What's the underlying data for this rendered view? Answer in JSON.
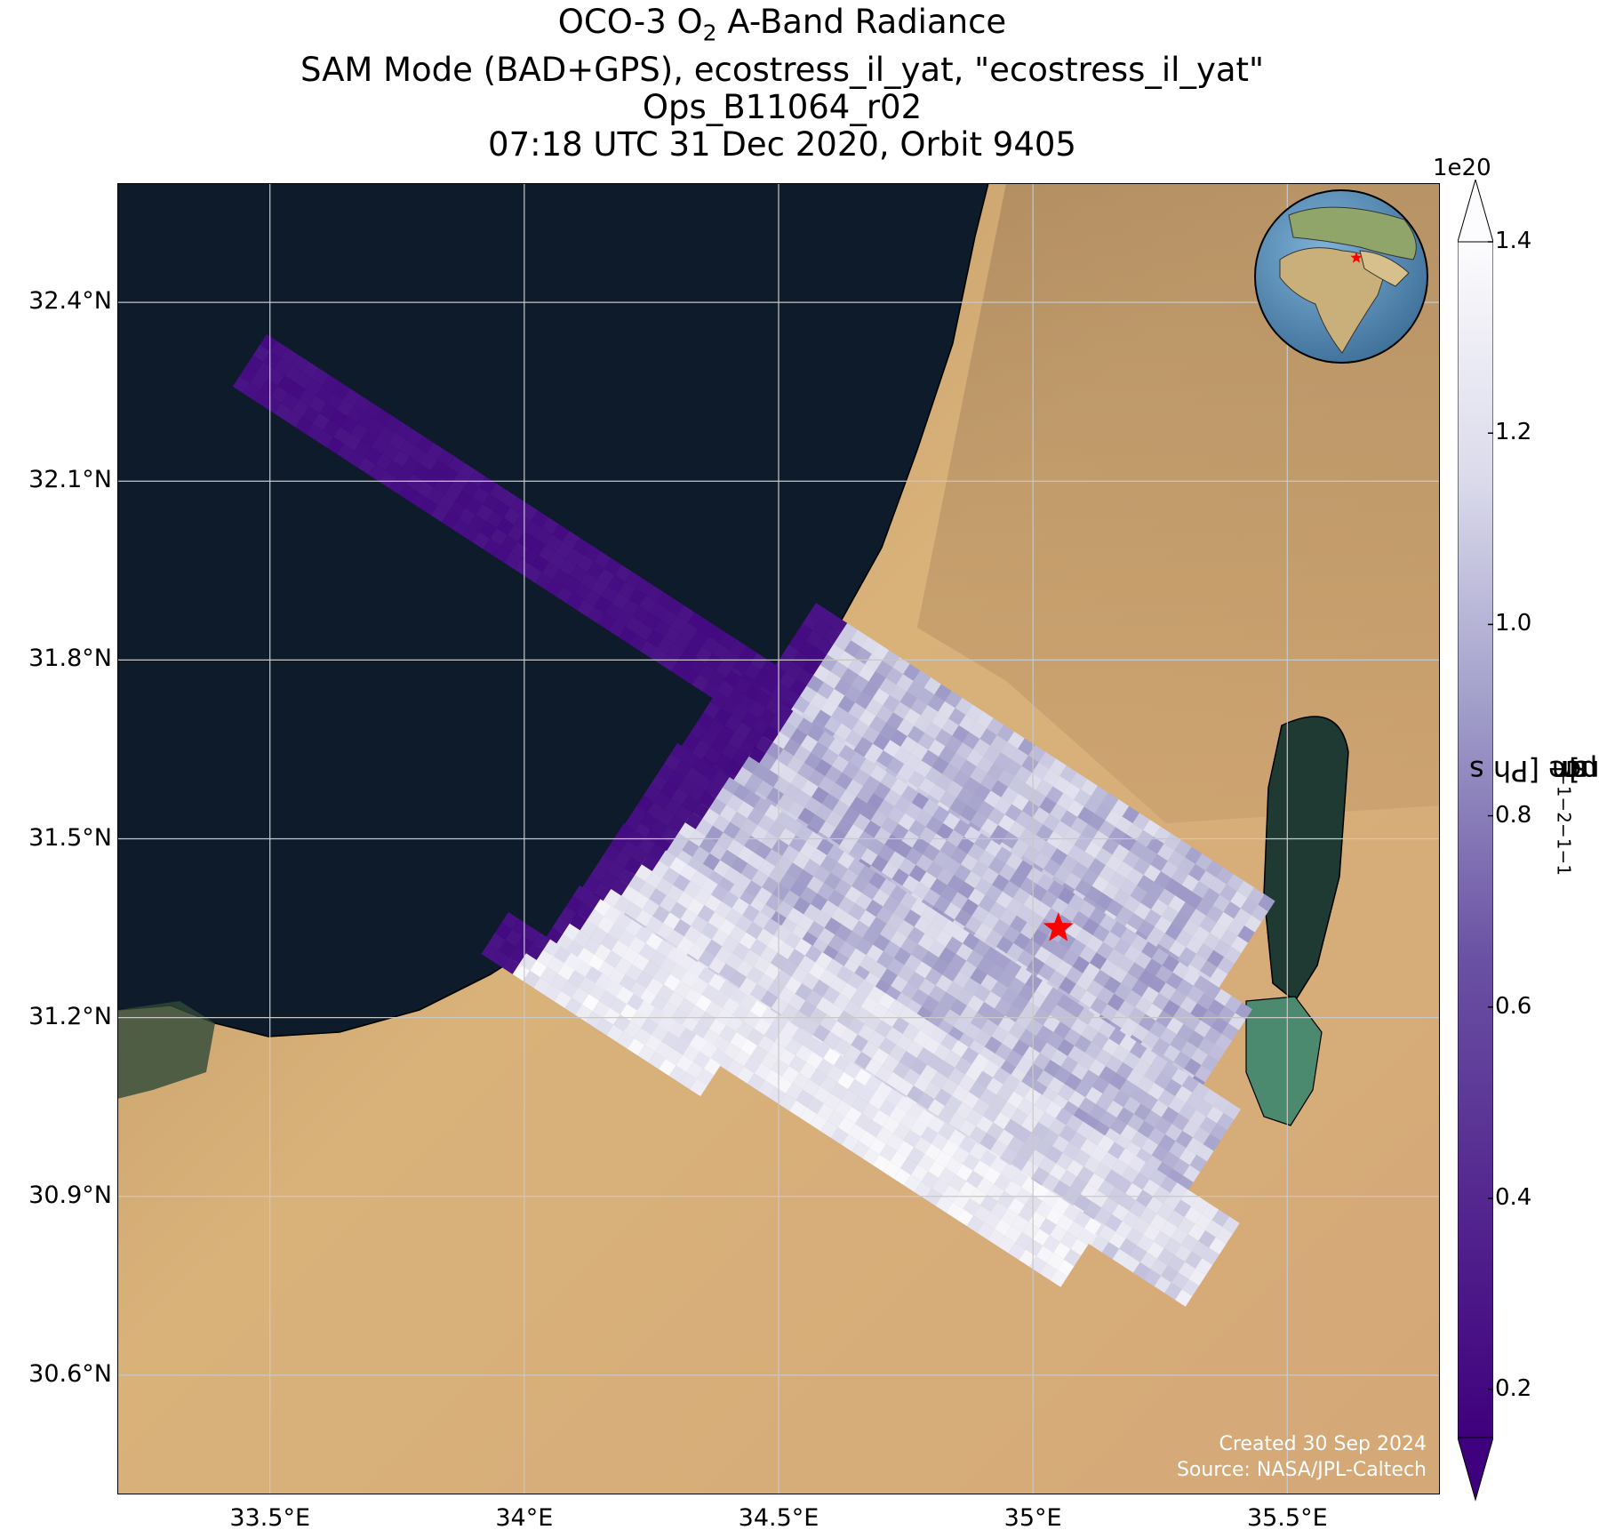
{
  "title": {
    "line1_prefix": "OCO-3 O",
    "line1_sub": "2",
    "line1_suffix": " A-Band Radiance",
    "line2": "SAM Mode (BAD+GPS), ecostress_il_yat, \"ecostress_il_yat\"",
    "line3": "Ops_B11064_r02",
    "line4": "07:18 UTC 31 Dec 2020, Orbit 9405"
  },
  "map": {
    "lat_labels": [
      "32.4°N",
      "32.1°N",
      "31.8°N",
      "31.5°N",
      "31.2°N",
      "30.9°N",
      "30.6°N"
    ],
    "lat_values": [
      32.4,
      32.1,
      31.8,
      31.5,
      31.2,
      30.9,
      30.6
    ],
    "lon_labels": [
      "33.5°E",
      "34°E",
      "34.5°E",
      "35°E",
      "35.5°E"
    ],
    "lon_values": [
      33.5,
      34.0,
      34.5,
      35.0,
      35.5
    ],
    "lat_range": [
      30.4,
      32.6
    ],
    "lon_range": [
      33.2,
      35.8
    ],
    "target": {
      "lat": 31.35,
      "lon": 35.05,
      "color": "#ff0000"
    },
    "colors": {
      "sea": "#0d1b2a",
      "land": "#d6b07a",
      "dead_sea": "#1f3a33"
    }
  },
  "colorbar": {
    "exponent": "1e20",
    "ticks": [
      "0.2",
      "0.4",
      "0.6",
      "0.8",
      "1.0",
      "1.2",
      "1.4"
    ],
    "tick_values": [
      0.2,
      0.4,
      0.6,
      0.8,
      1.0,
      1.2,
      1.4
    ],
    "range": [
      0.15,
      1.4
    ],
    "label_prefix": "Radiance [Ph s",
    "label_sup1": "−1",
    "label_mid1": " m",
    "label_sup2": "−2",
    "label_mid2": " sr",
    "label_sup3": "−1",
    "label_mid3": "μm",
    "label_sup4": "−1",
    "label_suffix": "]",
    "colormap": "Purples_r",
    "extend": "both"
  },
  "credits": {
    "created": "Created 30 Sep 2024",
    "source": "Source: NASA/JPL-Caltech"
  }
}
